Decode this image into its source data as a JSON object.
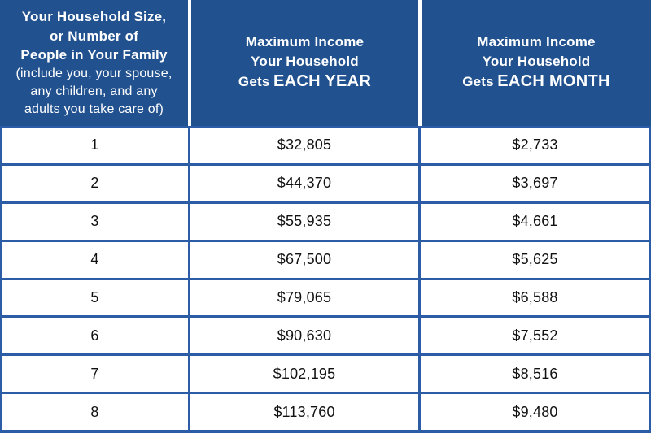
{
  "colors": {
    "header_bg": "#21518F",
    "border": "#2B5CA5",
    "header_text": "#FFFFFF",
    "body_text": "#111111",
    "row_bg": "#FFFFFF"
  },
  "header": {
    "household": {
      "line1": "Your Household Size,",
      "line2": "or Number of",
      "line3": "People in Your Family",
      "line4": "(include you, your spouse,",
      "line5": "any children, and any",
      "line6": "adults you take care of)"
    },
    "yearly": {
      "line1": "Maximum Income",
      "line2": "Your Household",
      "line3_prefix": "Gets",
      "line3_emph": "EACH YEAR"
    },
    "monthly": {
      "line1": "Maximum Income",
      "line2": "Your Household",
      "line3_prefix": "Gets",
      "line3_emph": "EACH MONTH"
    }
  },
  "rows": [
    {
      "size": "1",
      "year": "$32,805",
      "month": "$2,733"
    },
    {
      "size": "2",
      "year": "$44,370",
      "month": "$3,697"
    },
    {
      "size": "3",
      "year": "$55,935",
      "month": "$4,661"
    },
    {
      "size": "4",
      "year": "$67,500",
      "month": "$5,625"
    },
    {
      "size": "5",
      "year": "$79,065",
      "month": "$6,588"
    },
    {
      "size": "6",
      "year": "$90,630",
      "month": "$7,552"
    },
    {
      "size": "7",
      "year": "$102,195",
      "month": "$8,516"
    },
    {
      "size": "8",
      "year": "$113,760",
      "month": "$9,480"
    }
  ],
  "chart_data": {
    "type": "table",
    "title": "Maximum household income limits by household size",
    "columns": [
      "Your Household Size, or Number of People in Your Family (include you, your spouse, any children, and any adults you take care of)",
      "Maximum Income Your Household Gets EACH YEAR",
      "Maximum Income Your Household Gets EACH MONTH"
    ],
    "rows": [
      [
        1,
        32805,
        2733
      ],
      [
        2,
        44370,
        3697
      ],
      [
        3,
        55935,
        4661
      ],
      [
        4,
        67500,
        5625
      ],
      [
        5,
        79065,
        6588
      ],
      [
        6,
        90630,
        7552
      ],
      [
        7,
        102195,
        8516
      ],
      [
        8,
        113760,
        9480
      ]
    ]
  }
}
